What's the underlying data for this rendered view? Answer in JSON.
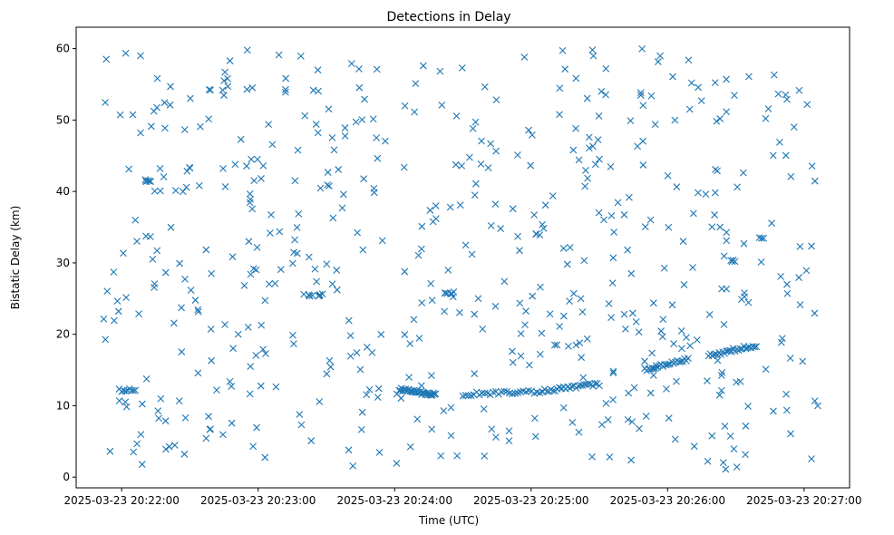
{
  "chart_data": {
    "type": "scatter",
    "title": "Detections in Delay",
    "xlabel": "Time (UTC)",
    "ylabel": "Bistatic Delay (km)",
    "marker": "x",
    "color": "#1f77b4",
    "xlim_seconds": [
      -20,
      320
    ],
    "x_origin": "2025-03-23 20:22:00",
    "ylim": [
      -1.5,
      63
    ],
    "x_ticks": [
      {
        "seconds": 0,
        "label": "2025-03-23 20:22:00"
      },
      {
        "seconds": 60,
        "label": "2025-03-23 20:23:00"
      },
      {
        "seconds": 120,
        "label": "2025-03-23 20:24:00"
      },
      {
        "seconds": 180,
        "label": "2025-03-23 20:25:00"
      },
      {
        "seconds": 240,
        "label": "2025-03-23 20:26:00"
      },
      {
        "seconds": 300,
        "label": "2025-03-23 20:27:00"
      }
    ],
    "y_ticks": [
      0,
      10,
      20,
      30,
      40,
      50,
      60
    ],
    "tracks": [
      {
        "name": "track-1",
        "t_start": 0,
        "t_end": 6,
        "delay_start": 12.2,
        "delay_end": 12.2,
        "count": 8
      },
      {
        "name": "track-2",
        "t_start": 122,
        "t_end": 138,
        "delay_start": 12.3,
        "delay_end": 11.5,
        "count": 35
      },
      {
        "name": "track-3",
        "t_start": 150,
        "t_end": 185,
        "delay_start": 11.6,
        "delay_end": 12.0,
        "count": 30
      },
      {
        "name": "track-4",
        "t_start": 185,
        "t_end": 210,
        "delay_start": 12.1,
        "delay_end": 13.0,
        "count": 28
      },
      {
        "name": "track-5",
        "t_start": 230,
        "t_end": 249,
        "delay_start": 15.0,
        "delay_end": 16.5,
        "count": 25
      },
      {
        "name": "track-6",
        "t_start": 258,
        "t_end": 279,
        "delay_start": 17.0,
        "delay_end": 18.5,
        "count": 28
      }
    ],
    "clutter": {
      "count": 560,
      "t_range": [
        -8,
        306
      ],
      "delay_range": [
        1.0,
        60.0
      ],
      "seed": 20250323
    },
    "plateaus": [
      {
        "t_start": 10,
        "t_end": 13,
        "delay": 41.5,
        "count": 5
      },
      {
        "t_start": 80,
        "t_end": 92,
        "delay": 25.5,
        "count": 10
      },
      {
        "t_start": 140,
        "t_end": 146,
        "delay": 25.8,
        "count": 6
      },
      {
        "t_start": 265,
        "t_end": 270,
        "delay": 30.3,
        "count": 4
      }
    ]
  }
}
